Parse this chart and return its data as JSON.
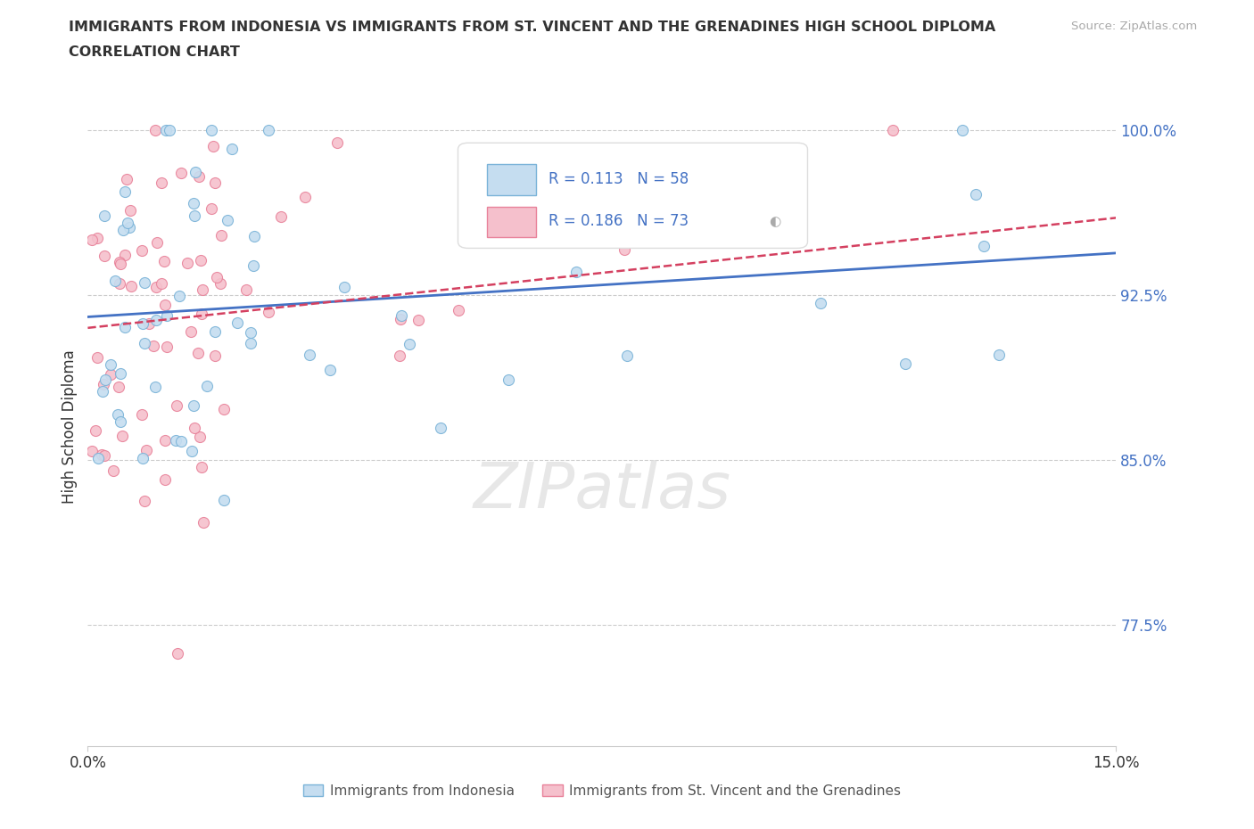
{
  "title_line1": "IMMIGRANTS FROM INDONESIA VS IMMIGRANTS FROM ST. VINCENT AND THE GRENADINES HIGH SCHOOL DIPLOMA",
  "title_line2": "CORRELATION CHART",
  "source_text": "Source: ZipAtlas.com",
  "ylabel": "High School Diploma",
  "xmin": 0.0,
  "xmax": 0.15,
  "ymin": 0.72,
  "ymax": 1.01,
  "yticks": [
    0.775,
    0.85,
    0.925,
    1.0
  ],
  "ytick_labels": [
    "77.5%",
    "85.0%",
    "92.5%",
    "100.0%"
  ],
  "xticks": [
    0.0,
    0.15
  ],
  "xtick_labels": [
    "0.0%",
    "15.0%"
  ],
  "indonesia_edge_color": "#7ab3d8",
  "indonesia_fill_color": "#c5ddf0",
  "svg_edge_color": "#e8829a",
  "svg_fill_color": "#f5c0cc",
  "trend_blue": "#4472c4",
  "trend_pink": "#d44060",
  "background_color": "#ffffff",
  "grid_color": "#cccccc",
  "axis_label_color": "#4472c4",
  "text_color": "#333333",
  "legend_R1": "R = 0.113",
  "legend_N1": "N = 58",
  "legend_R2": "R = 0.186",
  "legend_N2": "N = 73",
  "legend_label1": "Immigrants from Indonesia",
  "legend_label2": "Immigrants from St. Vincent and the Grenadines",
  "watermark": "ZIPatlas",
  "indo_seed": 42,
  "svg_seed": 99,
  "n_indo": 58,
  "n_svg": 73
}
